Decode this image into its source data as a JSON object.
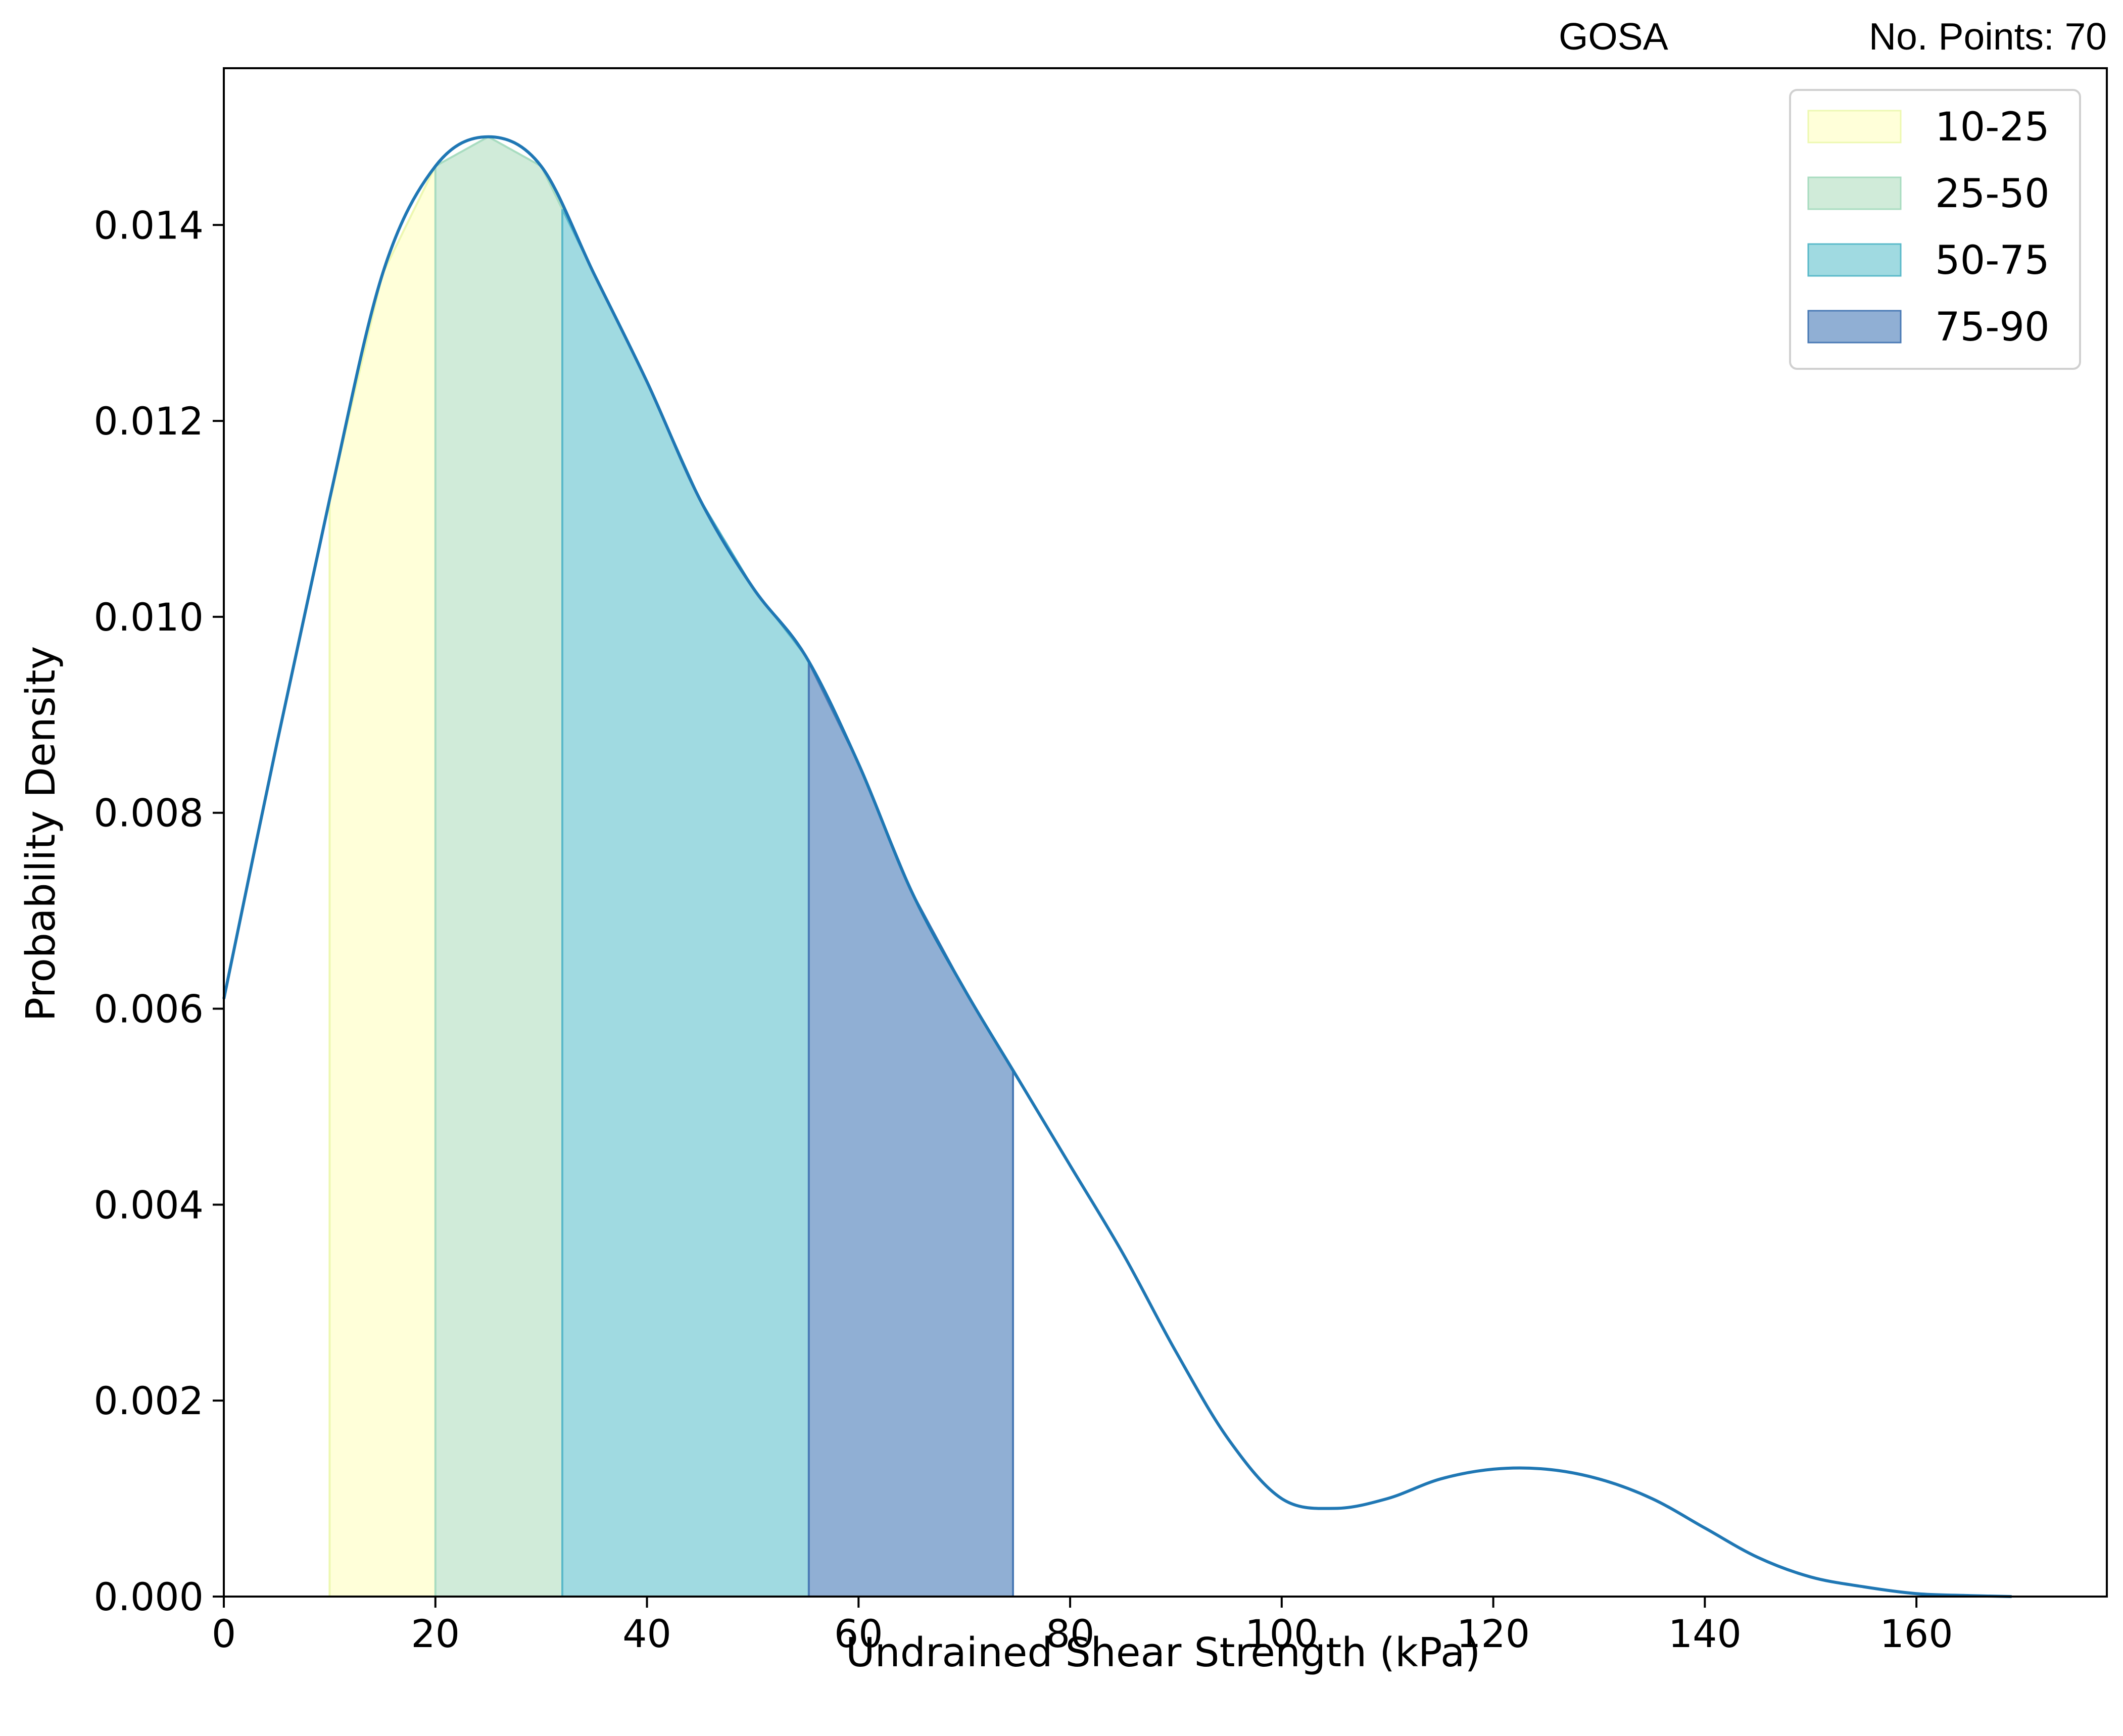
{
  "header": {
    "left_label": "GOSA",
    "right_label": "No. Points: 70"
  },
  "chart_data": {
    "type": "area",
    "xlabel": "Undrained Shear Strength (kPa)",
    "ylabel": "Probability Density",
    "xlim": [
      0,
      178
    ],
    "ylim": [
      0,
      0.0156
    ],
    "xticks": [
      0,
      20,
      40,
      60,
      80,
      100,
      120,
      140,
      160
    ],
    "yticks": [
      0.0,
      0.002,
      0.004,
      0.006,
      0.008,
      0.01,
      0.012,
      0.014
    ],
    "ytick_labels": [
      "0.000",
      "0.002",
      "0.004",
      "0.006",
      "0.008",
      "0.010",
      "0.012",
      "0.014"
    ],
    "grid": false,
    "legend_position": "upper right",
    "line_color": "#1f77b4",
    "curve": {
      "x": [
        0,
        5,
        10,
        15,
        20,
        25,
        30,
        35,
        40,
        45,
        50,
        55,
        60,
        65,
        70,
        75,
        80,
        85,
        90,
        95,
        100,
        105,
        110,
        115,
        120,
        125,
        130,
        135,
        140,
        145,
        150,
        155,
        160,
        165,
        169
      ],
      "y": [
        0.0061,
        0.0087,
        0.0112,
        0.0135,
        0.0146,
        0.0149,
        0.0146,
        0.0135,
        0.0124,
        0.0112,
        0.0103,
        0.0096,
        0.0085,
        0.0072,
        0.0062,
        0.0053,
        0.0044,
        0.0035,
        0.0025,
        0.0016,
        0.001,
        0.0009,
        0.001,
        0.0012,
        0.0013,
        0.0013,
        0.0012,
        0.001,
        0.0007,
        0.0004,
        0.0002,
        0.0001,
        3e-05,
        1e-05,
        0.0
      ]
    },
    "bands": [
      {
        "name": "10-25",
        "x_start": 10,
        "x_end": 20,
        "color": "#ffffd9",
        "edge": "#edf8b1"
      },
      {
        "name": "25-50",
        "x_start": 20,
        "x_end": 32,
        "color": "#d0ebd9",
        "edge": "#a8dcc0"
      },
      {
        "name": "50-75",
        "x_start": 32,
        "x_end": 55.3,
        "color": "#a0dae1",
        "edge": "#5ab9c9"
      },
      {
        "name": "75-90",
        "x_start": 55.3,
        "x_end": 74.6,
        "color": "#90afd4",
        "edge": "#4a7ab5"
      }
    ]
  }
}
